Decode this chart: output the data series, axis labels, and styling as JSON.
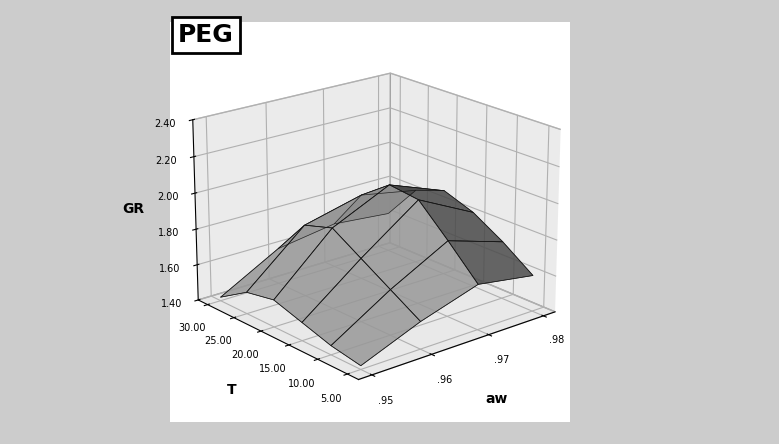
{
  "title": "PEG",
  "xlabel": "aw",
  "ylabel": "T",
  "zlabel": "GR",
  "aw_range": [
    0.95,
    0.96,
    0.97,
    0.98
  ],
  "T_range": [
    5,
    10,
    15,
    20,
    25,
    30
  ],
  "zlim": [
    1.4,
    2.4
  ],
  "zticks": [
    1.4,
    1.6,
    1.8,
    2.0,
    2.2,
    2.4
  ],
  "surface_color": "#aaaaaa",
  "surface_alpha": 0.85,
  "background_color": "#cccccc",
  "pane_color_side": "#d4d4d4",
  "pane_color_floor": "#c8c8c8",
  "title_fontsize": 18,
  "title_fontweight": "bold",
  "elev": 20,
  "azim": -130,
  "GR_data": [
    [
      1.42,
      1.55,
      1.65,
      1.6
    ],
    [
      1.45,
      1.65,
      1.82,
      1.72
    ],
    [
      1.5,
      1.75,
      1.98,
      1.82
    ],
    [
      1.55,
      1.85,
      2.0,
      1.88
    ],
    [
      1.52,
      1.8,
      1.88,
      1.82
    ],
    [
      1.42,
      1.6,
      1.65,
      1.62
    ]
  ]
}
